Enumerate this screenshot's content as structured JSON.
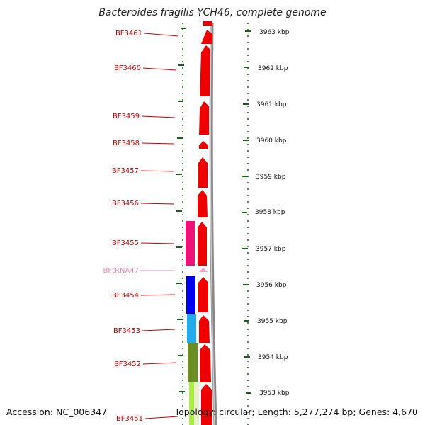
{
  "title": "Bacteroides fragilis YCH46, complete genome",
  "footer": {
    "accession": "Accession: NC_006347",
    "topology": "Topology: circular; Length: 5,277,274 bp; Genes: 4,670"
  },
  "axis": {
    "unit": "kbp",
    "ticks": [
      "3963 kbp",
      "3962 kbp",
      "3961 kbp",
      "3960 kbp",
      "3959 kbp",
      "3958 kbp",
      "3957 kbp",
      "3956 kbp",
      "3955 kbp",
      "3954 kbp",
      "3953 kbp"
    ]
  },
  "colors": {
    "gene_label": "#cc0000",
    "trna_label": "#ee88bb",
    "strand_gene": "#ee0000",
    "trna": "#ff99cc",
    "backbone": "#888888",
    "tick": "#116611",
    "category_pink": "#ee1177",
    "category_blue": "#0000ee",
    "category_cyan": "#22aaee",
    "category_olive": "#6b8e23",
    "category_lime": "#aaee44"
  },
  "genes": [
    {
      "label": "BF3461",
      "color": "gene"
    },
    {
      "label": "BF3460",
      "color": "gene"
    },
    {
      "label": "BF3459",
      "color": "gene"
    },
    {
      "label": "BF3458",
      "color": "gene"
    },
    {
      "label": "BF3457",
      "color": "gene"
    },
    {
      "label": "BF3456",
      "color": "gene"
    },
    {
      "label": "BF3455",
      "color": "gene"
    },
    {
      "label": "BFtRNA47",
      "color": "trna"
    },
    {
      "label": "BF3454",
      "color": "gene"
    },
    {
      "label": "BF3453",
      "color": "gene"
    },
    {
      "label": "BF3452",
      "color": "gene"
    },
    {
      "label": "BF3451",
      "color": "gene"
    }
  ]
}
